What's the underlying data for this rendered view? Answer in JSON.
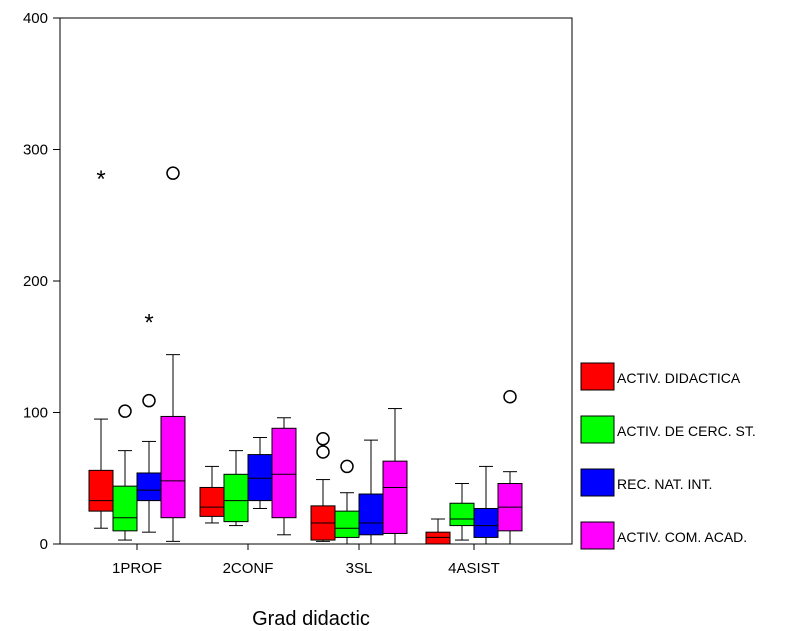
{
  "chart_data": {
    "type": "boxplot",
    "title": "",
    "xlabel": "Grad didactic",
    "ylabel": "",
    "ylim": [
      0,
      400
    ],
    "yticks": [
      0,
      100,
      200,
      300,
      400
    ],
    "grid": false,
    "legend_position": "right",
    "categories": [
      "1PROF",
      "2CONF",
      "3SL",
      "4ASIST"
    ],
    "series": [
      {
        "name": "ACTIV. DIDACTICA",
        "color": "#ff0000",
        "boxes": [
          {
            "min": 12,
            "q1": 25,
            "median": 33,
            "q3": 56,
            "max": 95,
            "outliers": [],
            "extremes": [
              279
            ]
          },
          {
            "min": 16,
            "q1": 21,
            "median": 28,
            "q3": 43,
            "max": 59,
            "outliers": [],
            "extremes": []
          },
          {
            "min": 2,
            "q1": 3,
            "median": 16,
            "q3": 29,
            "max": 49,
            "outliers": [
              70,
              80
            ],
            "extremes": []
          },
          {
            "min": 0,
            "q1": 0,
            "median": 5,
            "q3": 9,
            "max": 19,
            "outliers": [],
            "extremes": []
          }
        ]
      },
      {
        "name": "ACTIV. DE CERC. ST.",
        "color": "#00ff00",
        "boxes": [
          {
            "min": 3,
            "q1": 10,
            "median": 20,
            "q3": 44,
            "max": 71,
            "outliers": [
              101
            ],
            "extremes": []
          },
          {
            "min": 14,
            "q1": 17,
            "median": 33,
            "q3": 53,
            "max": 71,
            "outliers": [],
            "extremes": []
          },
          {
            "min": 0,
            "q1": 5,
            "median": 12,
            "q3": 25,
            "max": 39,
            "outliers": [
              59
            ],
            "extremes": []
          },
          {
            "min": 3,
            "q1": 14,
            "median": 19,
            "q3": 31,
            "max": 46,
            "outliers": [],
            "extremes": []
          }
        ]
      },
      {
        "name": "REC. NAT. INT.",
        "color": "#0000ff",
        "boxes": [
          {
            "min": 9,
            "q1": 33,
            "median": 41,
            "q3": 54,
            "max": 78,
            "outliers": [
              109
            ],
            "extremes": [
              170
            ]
          },
          {
            "min": 27,
            "q1": 33,
            "median": 50,
            "q3": 68,
            "max": 81,
            "outliers": [],
            "extremes": []
          },
          {
            "min": 0,
            "q1": 7,
            "median": 16,
            "q3": 38,
            "max": 79,
            "outliers": [],
            "extremes": []
          },
          {
            "min": 0,
            "q1": 5,
            "median": 14,
            "q3": 27,
            "max": 59,
            "outliers": [],
            "extremes": []
          }
        ]
      },
      {
        "name": "ACTIV. COM. ACAD.",
        "color": "#ff00ff",
        "boxes": [
          {
            "min": 2,
            "q1": 20,
            "median": 48,
            "q3": 97,
            "max": 144,
            "outliers": [
              282
            ],
            "extremes": []
          },
          {
            "min": 7,
            "q1": 20,
            "median": 53,
            "q3": 88,
            "max": 96,
            "outliers": [],
            "extremes": []
          },
          {
            "min": 0,
            "q1": 8,
            "median": 43,
            "q3": 63,
            "max": 103,
            "outliers": [],
            "extremes": []
          },
          {
            "min": 0,
            "q1": 10,
            "median": 28,
            "q3": 46,
            "max": 55,
            "outliers": [
              112
            ],
            "extremes": []
          }
        ]
      }
    ]
  }
}
